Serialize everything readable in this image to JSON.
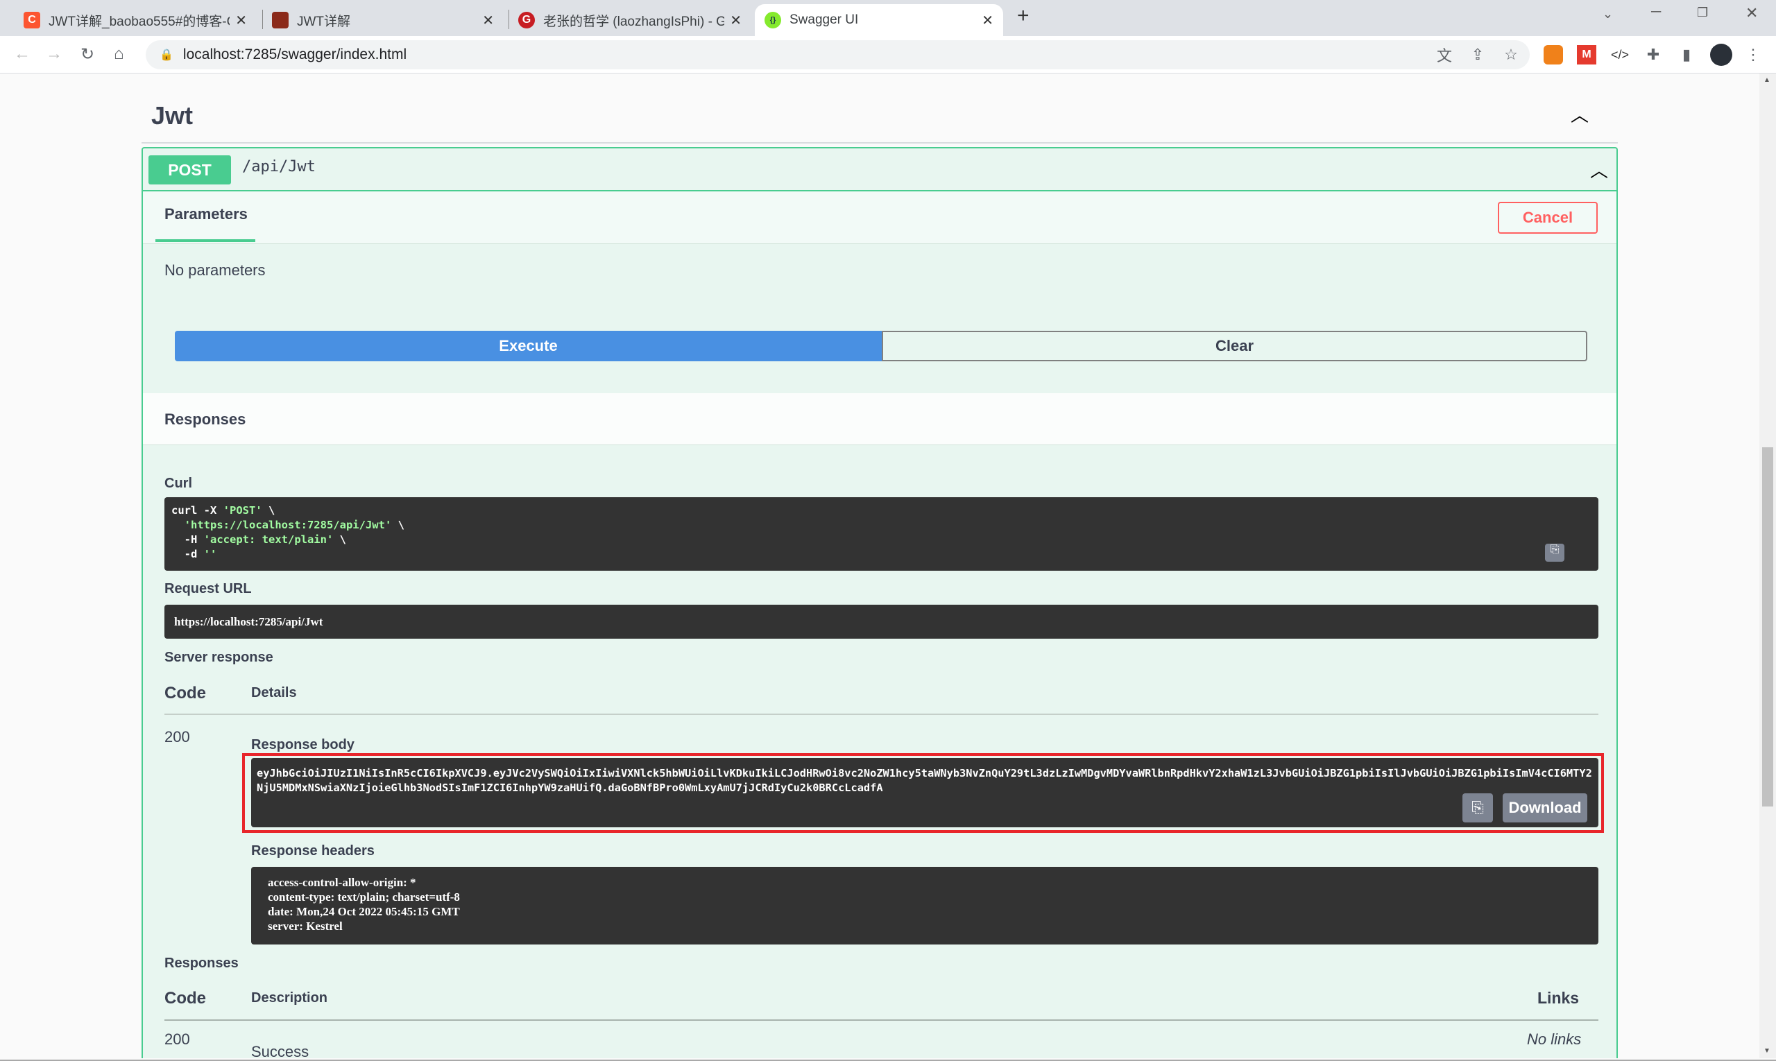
{
  "browser": {
    "tabs": [
      {
        "title": "JWT详解_baobao555#的博客-C",
        "favicon": "csdn-icon",
        "color": "#fc5531",
        "glyph": "C"
      },
      {
        "title": "JWT详解",
        "favicon": "image-icon",
        "color": "#8b2a1a",
        "glyph": ""
      },
      {
        "title": "老张的哲学 (laozhangIsPhi) - Gi",
        "favicon": "gitee-icon",
        "color": "#c71d23",
        "glyph": "G"
      },
      {
        "title": "Swagger UI",
        "favicon": "swagger-icon",
        "color": "#85ea2d",
        "glyph": "{}"
      }
    ],
    "close_glyph": "✕",
    "new_tab_glyph": "+",
    "url": "localhost:7285/swagger/index.html"
  },
  "section": {
    "title": "Jwt"
  },
  "operation": {
    "method": "POST",
    "path": "/api/Jwt",
    "method_color": "#49cc90",
    "parameters_tab": "Parameters",
    "cancel_label": "Cancel",
    "no_parameters": "No parameters",
    "execute_label": "Execute",
    "clear_label": "Clear",
    "responses_title": "Responses"
  },
  "result": {
    "curl_label": "Curl",
    "curl": {
      "l1a": "curl -X ",
      "l1b": "'POST'",
      "l1c": " \\",
      "l2a": "  ",
      "l2b": "'https://localhost:7285/api/Jwt'",
      "l2c": " \\",
      "l3a": "  -H ",
      "l3b": "'accept: text/plain'",
      "l3c": " \\",
      "l4a": "  -d ",
      "l4b": "''"
    },
    "request_url_label": "Request URL",
    "request_url": "https://localhost:7285/api/Jwt",
    "server_response_label": "Server response",
    "code_header": "Code",
    "details_header": "Details",
    "status_code": "200",
    "response_body_label": "Response body",
    "response_body": "eyJhbGciOiJIUzI1NiIsInR5cCI6IkpXVCJ9.eyJVc2VySWQiOiIxIiwiVXNlck5hbWUiOiLlvKDkuIkiLCJodHRwOi8vc2NoZW1hcy5taWNyb3NvZnQuY29tL3dzLzIwMDgvMDYvaWRlbnRpdHkvY2xhaW1zL3JvbGUiOiJBZG1pbiIsIlJvbGUiOiJBZG1pbiIsImV4cCI6MTY2NjU5MDMxNSwiaXNzIjoieGlhb3NodSIsImF1ZCI6InhpYW9zaHUifQ.daGoBNfBPro0WmLxyAmU7jJCRdIyCu2k0BRCcLcadfA",
    "download_label": "Download",
    "response_headers_label": "Response headers",
    "response_headers": "access-control-allow-origin: *\ncontent-type: text/plain; charset=utf-8\ndate: Mon,24 Oct 2022 05:45:15 GMT\nserver: Kestrel",
    "highlight_color": "#e8262b"
  },
  "responses": {
    "title": "Responses",
    "code_header": "Code",
    "description_header": "Description",
    "links_header": "Links",
    "rows": [
      {
        "code": "200",
        "description": "Success",
        "links": "No links"
      }
    ]
  }
}
